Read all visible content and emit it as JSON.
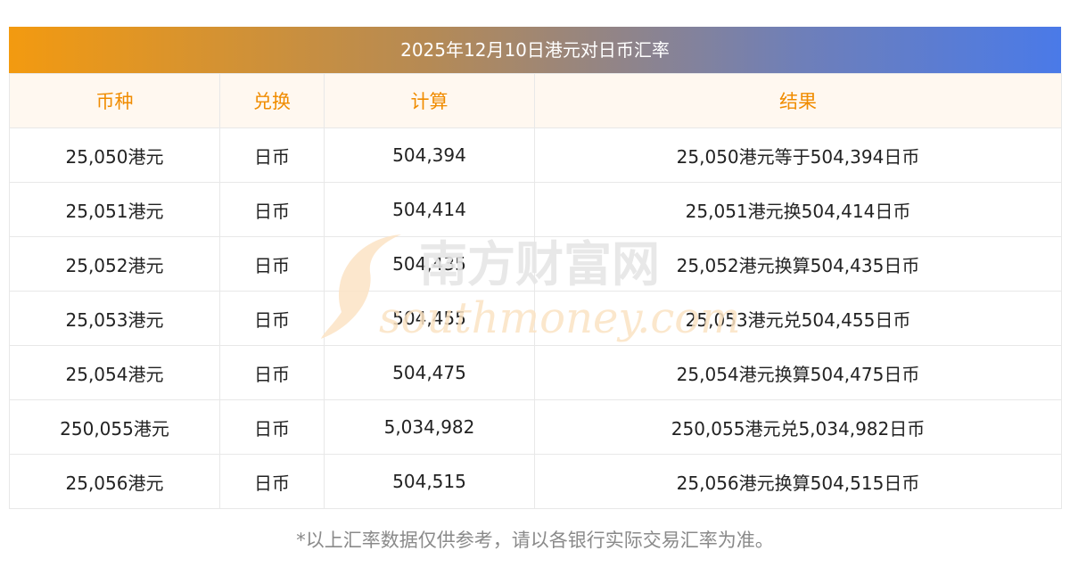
{
  "title": "2025年12月10日港元对日币汇率",
  "headers": [
    "币种",
    "兑换",
    "计算",
    "结果"
  ],
  "rows": [
    [
      "25,050港元",
      "日币",
      "504,394",
      "25,050港元等于504,394日币"
    ],
    [
      "25,051港元",
      "日币",
      "504,414",
      "25,051港元换504,414日币"
    ],
    [
      "25,052港元",
      "日币",
      "504,435",
      "25,052港元换算504,435日币"
    ],
    [
      "25,053港元",
      "日币",
      "504,455",
      "25,053港元兑504,455日币"
    ],
    [
      "25,054港元",
      "日币",
      "504,475",
      "25,054港元换算504,475日币"
    ],
    [
      "250,055港元",
      "日币",
      "5,034,982",
      "250,055港元兑5,034,982日币"
    ],
    [
      "25,056港元",
      "日币",
      "504,515",
      "25,056港元换算504,515日币"
    ]
  ],
  "watermark": {
    "cn": "南方财富网",
    "en": "southmoney.com"
  },
  "footnote": "*以上汇率数据仅供参考，请以各银行实际交易汇率为准。"
}
